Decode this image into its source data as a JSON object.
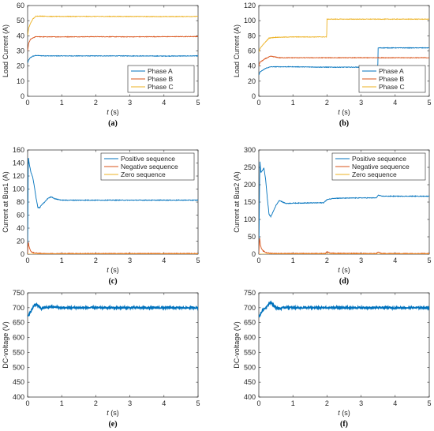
{
  "chart_data": [
    {
      "type": "line",
      "panel_label": "(a)",
      "xlabel_italic": "t",
      "xlabel_rest": " (s)",
      "ylabel": "Load Current (A)",
      "xlim": [
        0,
        5
      ],
      "ylim": [
        0,
        60
      ],
      "xticks": [
        0,
        1,
        2,
        3,
        4,
        5
      ],
      "yticks": [
        0,
        10,
        20,
        30,
        40,
        50,
        60
      ],
      "legend": "bottom-right",
      "series": [
        {
          "name": "Phase A",
          "color": "#0072BD",
          "x": [
            0,
            0.03,
            0.08,
            0.15,
            0.25,
            0.4,
            0.7,
            1,
            2,
            3,
            4,
            5
          ],
          "y": [
            22,
            24,
            25.5,
            26.5,
            27,
            26.8,
            26.7,
            26.7,
            26.7,
            26.7,
            26.6,
            26.7
          ]
        },
        {
          "name": "Phase B",
          "color": "#D95319",
          "x": [
            0,
            0.03,
            0.08,
            0.15,
            0.25,
            0.4,
            0.7,
            1,
            2,
            3,
            4,
            5
          ],
          "y": [
            30,
            35,
            37.5,
            38.5,
            39.5,
            39.3,
            39.3,
            39.3,
            39.4,
            39.3,
            39.4,
            39.5
          ]
        },
        {
          "name": "Phase C",
          "color": "#EDB120",
          "x": [
            0,
            0.03,
            0.08,
            0.15,
            0.25,
            0.4,
            0.7,
            1,
            2,
            3,
            4,
            5
          ],
          "y": [
            40,
            45,
            48,
            51,
            53,
            53,
            52.8,
            52.8,
            52.8,
            52.8,
            52.7,
            52.8
          ]
        }
      ]
    },
    {
      "type": "line",
      "panel_label": "(b)",
      "xlabel_italic": "t",
      "xlabel_rest": " (s)",
      "ylabel": "Load Current (A)",
      "xlim": [
        0,
        5
      ],
      "ylim": [
        0,
        120
      ],
      "xticks": [
        0,
        1,
        2,
        3,
        4,
        5
      ],
      "yticks": [
        0,
        20,
        40,
        60,
        80,
        100,
        120
      ],
      "legend": "bottom-right",
      "series": [
        {
          "name": "Phase A",
          "color": "#0072BD",
          "x": [
            0,
            0.03,
            0.1,
            0.2,
            0.35,
            0.6,
            1,
            2,
            3,
            3.49,
            3.5,
            4,
            5
          ],
          "y": [
            28,
            32,
            34,
            37,
            39,
            39,
            39,
            38.5,
            38.5,
            38.5,
            64,
            64,
            64
          ]
        },
        {
          "name": "Phase B",
          "color": "#D95319",
          "x": [
            0,
            0.03,
            0.1,
            0.2,
            0.35,
            0.6,
            1,
            2,
            3,
            4,
            5
          ],
          "y": [
            40,
            45,
            47,
            50,
            53,
            51,
            51,
            51,
            51,
            51,
            51
          ]
        },
        {
          "name": "Phase C",
          "color": "#EDB120",
          "x": [
            0,
            0.03,
            0.1,
            0.2,
            0.3,
            0.5,
            1,
            1.99,
            2,
            3,
            4,
            5
          ],
          "y": [
            58,
            63,
            67,
            72,
            77,
            78,
            78.5,
            78.5,
            102,
            102,
            102,
            102
          ]
        }
      ]
    },
    {
      "type": "line",
      "panel_label": "(c)",
      "xlabel_italic": "t",
      "xlabel_rest": " (s)",
      "ylabel": "Current at Bus1 (A)",
      "xlim": [
        0,
        5
      ],
      "ylim": [
        0,
        160
      ],
      "xticks": [
        0,
        1,
        2,
        3,
        4,
        5
      ],
      "yticks": [
        0,
        20,
        40,
        60,
        80,
        100,
        120,
        140,
        160
      ],
      "legend": "top-right",
      "series": [
        {
          "name": "Positive sequence",
          "color": "#0072BD",
          "x": [
            0,
            0.02,
            0.05,
            0.1,
            0.15,
            0.2,
            0.25,
            0.3,
            0.35,
            0.4,
            0.5,
            0.6,
            0.7,
            0.8,
            1,
            2,
            3,
            4,
            5
          ],
          "y": [
            0,
            150,
            138,
            125,
            118,
            103,
            86,
            72,
            71,
            75,
            80,
            86,
            88,
            85,
            83,
            83,
            83,
            83,
            83
          ]
        },
        {
          "name": "Negative sequence",
          "color": "#D95319",
          "x": [
            0,
            0.02,
            0.04,
            0.08,
            0.12,
            0.2,
            0.3,
            0.5,
            1,
            2,
            3,
            4,
            5
          ],
          "y": [
            0,
            20,
            12,
            6,
            3,
            2,
            1.5,
            1,
            1,
            1,
            1,
            1,
            1
          ]
        },
        {
          "name": "Zero sequence",
          "color": "#EDB120",
          "x": [
            0,
            5
          ],
          "y": [
            0,
            0
          ]
        }
      ]
    },
    {
      "type": "line",
      "panel_label": "(d)",
      "xlabel_italic": "t",
      "xlabel_rest": " (s)",
      "ylabel": "Current at Bus2 (A)",
      "xlim": [
        0,
        5
      ],
      "ylim": [
        0,
        300
      ],
      "xticks": [
        0,
        1,
        2,
        3,
        4,
        5
      ],
      "yticks": [
        0,
        50,
        100,
        150,
        200,
        250,
        300
      ],
      "legend": "top-right",
      "series": [
        {
          "name": "Positive sequence",
          "color": "#0072BD",
          "x": [
            0,
            0.03,
            0.06,
            0.1,
            0.15,
            0.2,
            0.25,
            0.3,
            0.35,
            0.4,
            0.5,
            0.6,
            0.7,
            0.8,
            1,
            1.9,
            2.0,
            2.2,
            3,
            3.45,
            3.5,
            3.6,
            4,
            5
          ],
          "y": [
            0,
            270,
            235,
            240,
            248,
            215,
            160,
            115,
            108,
            118,
            140,
            155,
            150,
            146,
            147,
            148,
            157,
            161,
            162,
            162,
            170,
            167,
            167,
            167
          ]
        },
        {
          "name": "Negative sequence",
          "color": "#D95319",
          "x": [
            0,
            0.02,
            0.05,
            0.08,
            0.12,
            0.2,
            0.3,
            0.5,
            1,
            1.95,
            2.0,
            2.1,
            3,
            3.45,
            3.5,
            3.6,
            4,
            5
          ],
          "y": [
            0,
            50,
            25,
            15,
            10,
            5,
            3,
            2,
            2,
            2,
            7,
            3,
            2,
            2,
            6,
            2,
            2,
            2
          ]
        },
        {
          "name": "Zero sequence",
          "color": "#EDB120",
          "x": [
            0,
            5
          ],
          "y": [
            0,
            0
          ]
        }
      ]
    },
    {
      "type": "line",
      "panel_label": "(e)",
      "xlabel_italic": "t",
      "xlabel_rest": " (s)",
      "ylabel": "DC-voltage (V)",
      "xlim": [
        0,
        5
      ],
      "ylim": [
        400,
        750
      ],
      "xticks": [
        0,
        1,
        2,
        3,
        4,
        5
      ],
      "yticks": [
        400,
        450,
        500,
        550,
        600,
        650,
        700,
        750
      ],
      "series": [
        {
          "color": "#0072BD",
          "x": [
            0,
            0.05,
            0.1,
            0.15,
            0.2,
            0.25,
            0.3,
            0.4,
            0.5,
            0.7,
            1,
            2,
            3,
            4,
            5
          ],
          "y": [
            670,
            680,
            688,
            700,
            710,
            712,
            707,
            697,
            700,
            703,
            700,
            700,
            700,
            700,
            700
          ]
        }
      ]
    },
    {
      "type": "line",
      "panel_label": "(f)",
      "xlabel_italic": "t",
      "xlabel_rest": " (s)",
      "ylabel": "DC-voltage (V)",
      "xlim": [
        0,
        5
      ],
      "ylim": [
        400,
        750
      ],
      "xticks": [
        0,
        1,
        2,
        3,
        4,
        5
      ],
      "yticks": [
        400,
        450,
        500,
        550,
        600,
        650,
        700,
        750
      ],
      "series": [
        {
          "color": "#0072BD",
          "x": [
            0,
            0.05,
            0.1,
            0.2,
            0.3,
            0.35,
            0.4,
            0.5,
            0.6,
            0.8,
            1,
            2,
            3,
            4,
            5
          ],
          "y": [
            670,
            678,
            690,
            700,
            715,
            717,
            712,
            700,
            697,
            702,
            700,
            700,
            700,
            700,
            700
          ]
        }
      ]
    }
  ]
}
